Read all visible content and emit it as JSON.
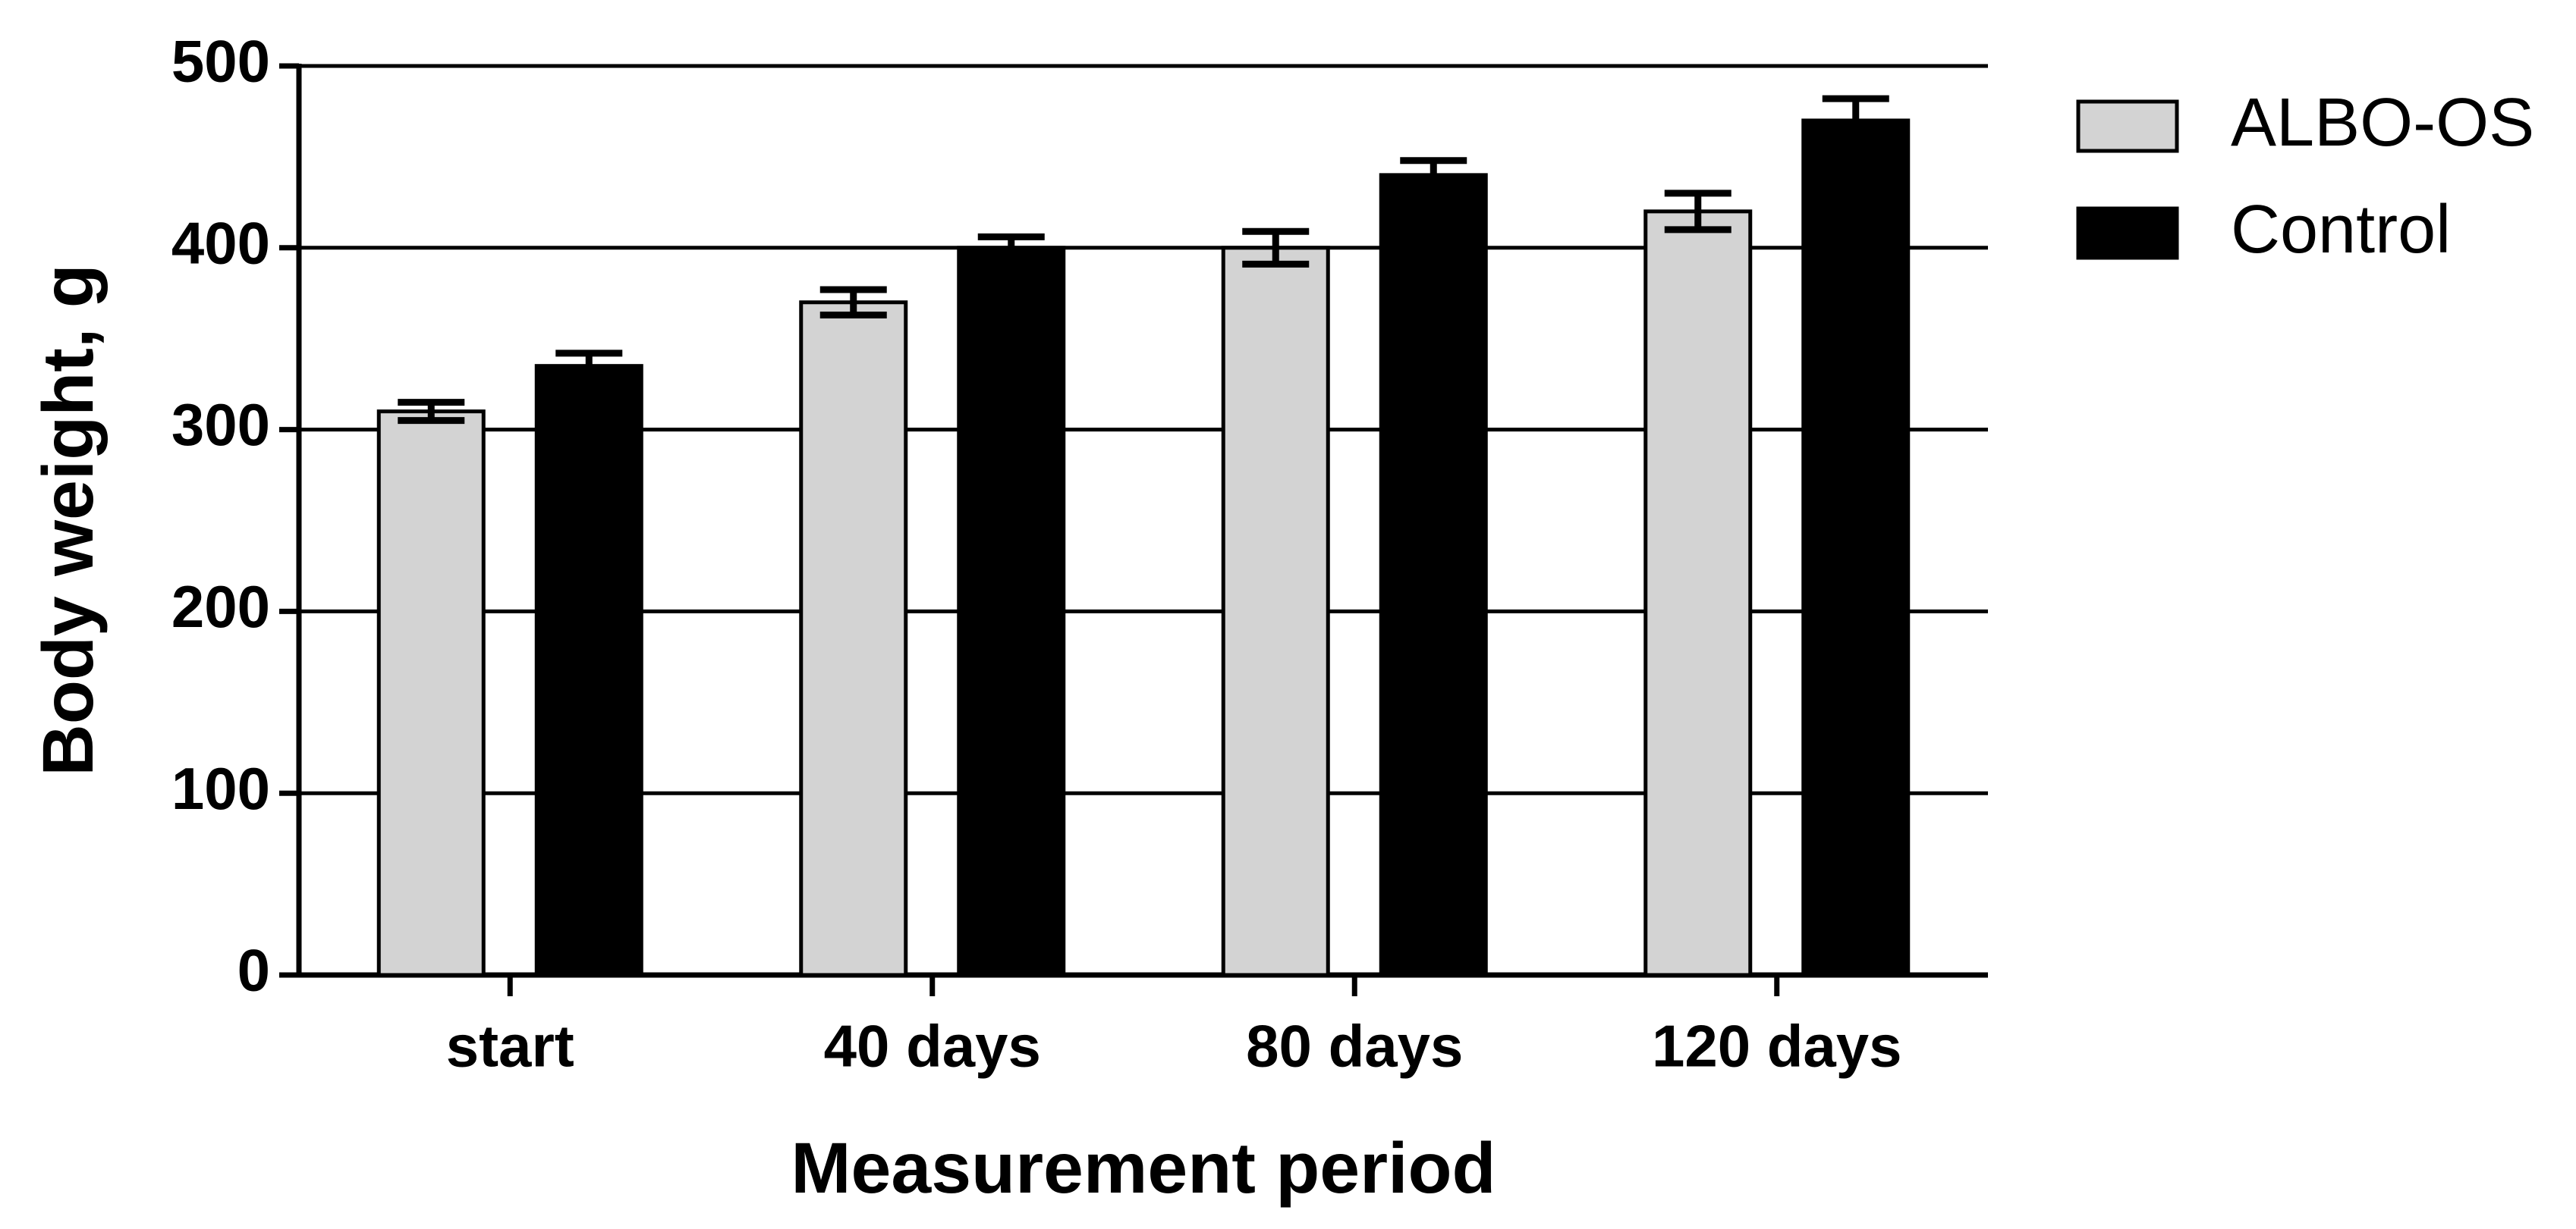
{
  "chart_data": {
    "type": "bar",
    "x_label": "Measurement period",
    "y_label": "Body weight, g",
    "categories": [
      "start",
      "40 days",
      "80 days",
      "120 days"
    ],
    "series": [
      {
        "name": "ALBO-OS",
        "color": "#d3d3d3",
        "values": [
          310,
          370,
          400,
          420
        ],
        "errors": [
          5,
          7,
          9,
          10
        ]
      },
      {
        "name": "Control",
        "color": "#000000",
        "values": [
          335,
          400,
          440,
          470
        ],
        "errors": [
          7,
          6,
          8,
          12
        ]
      }
    ],
    "ylim": [
      0,
      500
    ],
    "yticks": [
      0,
      100,
      200,
      300,
      400,
      500
    ],
    "grid": true
  }
}
